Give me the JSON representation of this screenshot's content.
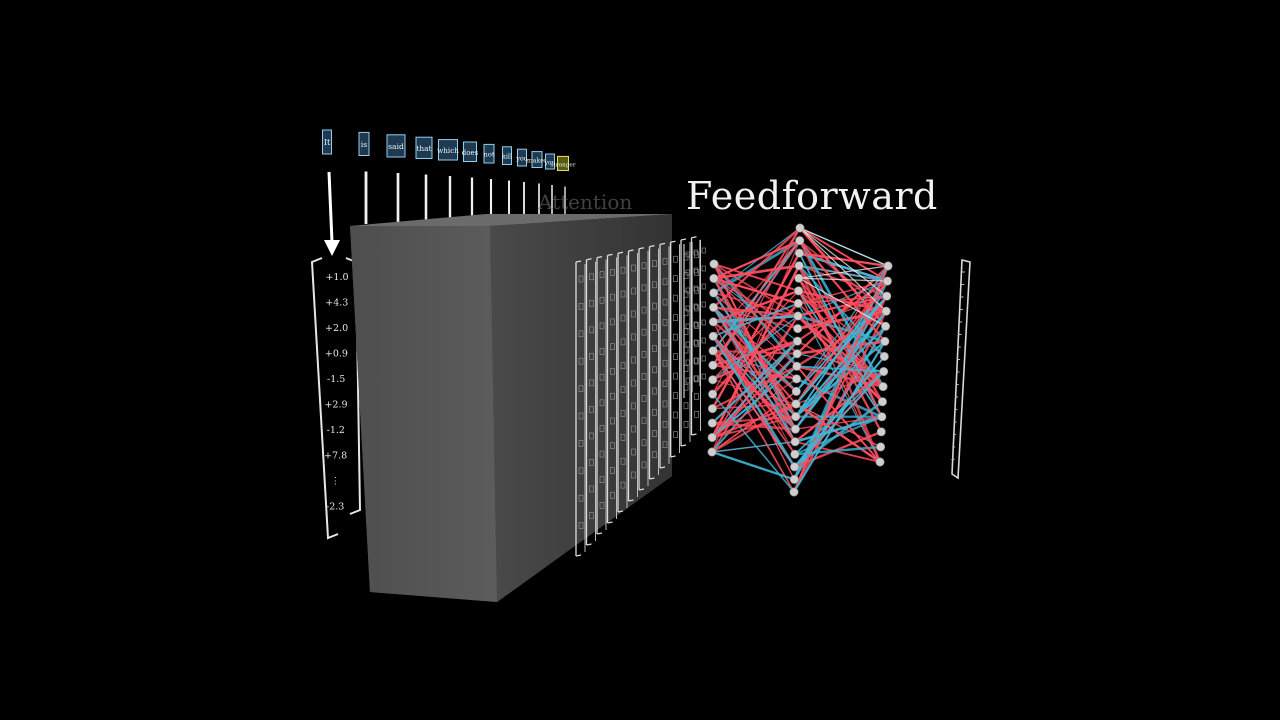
{
  "title": "Feedforward",
  "attention_label": "Attention",
  "tokens": [
    "It",
    "is",
    "said",
    "that",
    "which",
    "does",
    "not",
    "kill",
    "you",
    "makes",
    "you",
    "stronger"
  ],
  "input_vector": [
    "+1.0",
    "+4.3",
    "+2.0",
    "+0.9",
    "-1.5",
    "+2.9",
    "-1.2",
    "+7.8",
    "⋮",
    "-2.3"
  ],
  "colors": {
    "background": "#000000",
    "block_front": "#565656",
    "block_side": "#3c3c3c",
    "block_top": "#6a6a6a",
    "positive_weight": "#ff4d5e",
    "negative_weight": "#3fb6d6",
    "neuron": "#cfcfcf"
  },
  "network": {
    "layers": [
      14,
      22,
      14
    ],
    "icon": "mlp-network-icon"
  }
}
